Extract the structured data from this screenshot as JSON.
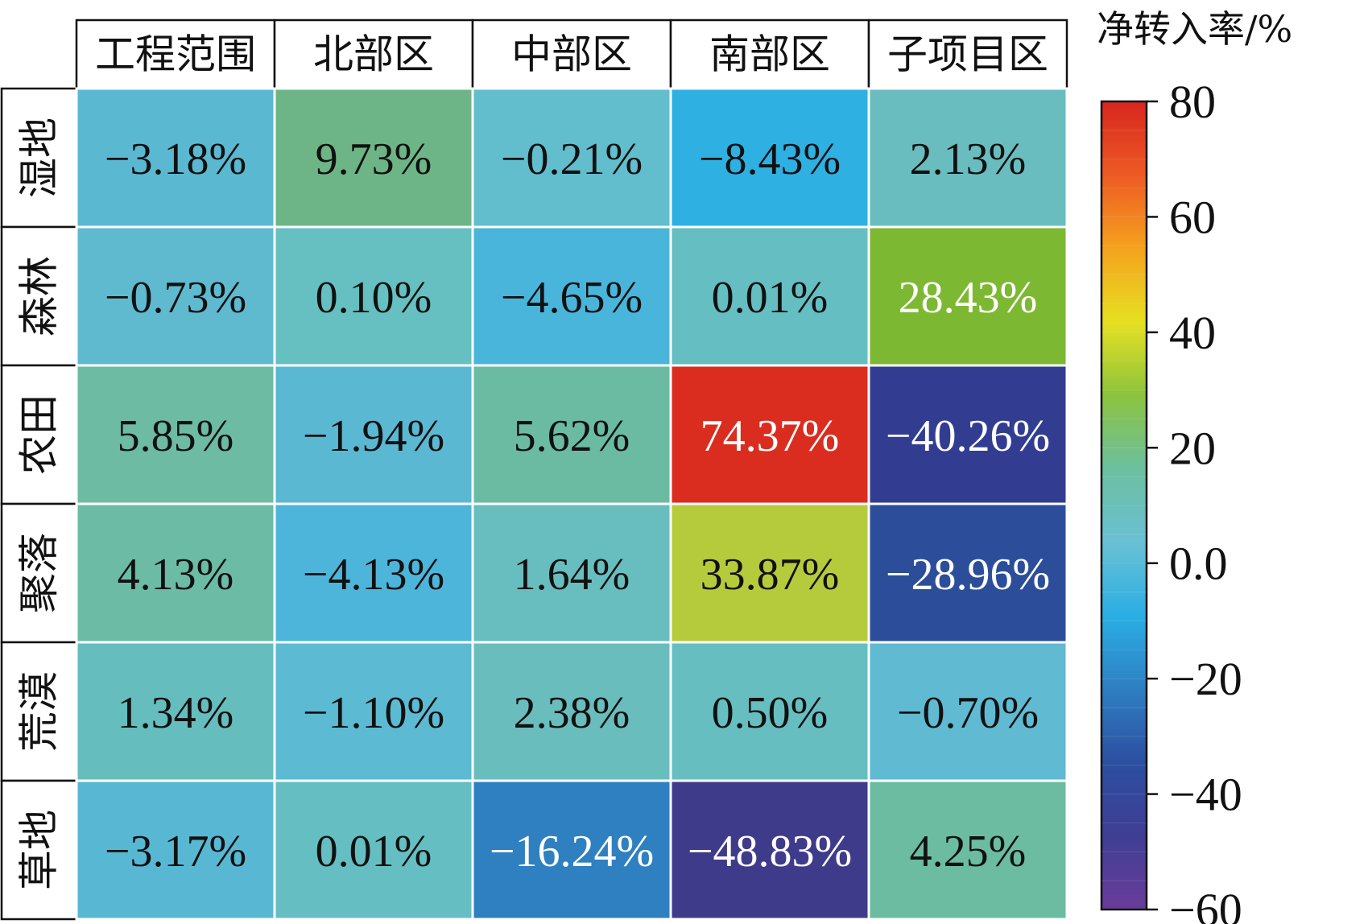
{
  "chart_data": {
    "type": "heatmap",
    "columns": [
      "工程范围",
      "北部区",
      "中部区",
      "南部区",
      "子项目区"
    ],
    "rows": [
      "湿地",
      "森林",
      "农田",
      "聚落",
      "荒漠",
      "草地"
    ],
    "values": [
      [
        -3.18,
        9.73,
        -0.21,
        -8.43,
        2.13
      ],
      [
        -0.73,
        0.1,
        -4.65,
        0.01,
        28.43
      ],
      [
        5.85,
        -1.94,
        5.62,
        74.37,
        -40.26
      ],
      [
        4.13,
        -4.13,
        1.64,
        33.87,
        -28.96
      ],
      [
        1.34,
        -1.1,
        2.38,
        0.5,
        -0.7
      ],
      [
        -3.17,
        0.01,
        -16.24,
        -48.83,
        4.25
      ]
    ],
    "labels": [
      [
        "−3.18%",
        "9.73%",
        "−0.21%",
        "−8.43%",
        "2.13%"
      ],
      [
        "−0.73%",
        "0.10%",
        "−4.65%",
        "0.01%",
        "28.43%"
      ],
      [
        "5.85%",
        "−1.94%",
        "5.62%",
        "74.37%",
        "−40.26%"
      ],
      [
        "4.13%",
        "−4.13%",
        "1.64%",
        "33.87%",
        "−28.96%"
      ],
      [
        "1.34%",
        "−1.10%",
        "2.38%",
        "0.50%",
        "−0.70%"
      ],
      [
        "−3.17%",
        "0.01%",
        "−16.24%",
        "−48.83%",
        "4.25%"
      ]
    ],
    "colorbar": {
      "title": "净转入率/%",
      "range": [
        -60,
        80
      ],
      "ticks": [
        80,
        60,
        40,
        20,
        0,
        -20,
        -40,
        -60
      ],
      "tick_labels": [
        "80",
        "60",
        "40",
        "20",
        "0.0",
        "−20",
        "−40",
        "−60"
      ],
      "colors": [
        "#6a3d9a",
        "#3f3e94",
        "#2c4fa0",
        "#2e7fc2",
        "#2aaee4",
        "#69c1d4",
        "#6cbfa0",
        "#8cc43e",
        "#e6e021",
        "#f5a21e",
        "#ed5a24",
        "#d7261e"
      ]
    },
    "value_colors": {
      "-3.18": "#5ab8d0",
      "9.73": "#6db586",
      "-0.21": "#62bdcc",
      "-8.43": "#2eb0e2",
      "2.13": "#69bdbf",
      "-0.73": "#5fbad0",
      "0.10": "#66bfc0",
      "-4.65": "#4ab5da",
      "0.01": "#65bec2",
      "28.43": "#7db833",
      "5.85": "#6cbba2",
      "-1.94": "#5bb8d2",
      "5.62": "#6bbba3",
      "74.37": "#da2d20",
      "-40.26": "#323d92",
      "4.13": "#6bbba5",
      "-4.13": "#4db5da",
      "1.64": "#68bdbe",
      "33.87": "#b6cb3c",
      "-28.96": "#2c4e9a",
      "1.34": "#66bdbe",
      "-1.10": "#5cbad3",
      "2.38": "#69bdbc",
      "0.50": "#66bec1",
      "-0.70": "#5fbad2",
      "-3.17": "#58b8d3",
      "-16.24": "#2f80c0",
      "-48.83": "#3f3b8b",
      "4.25": "#6bbca1"
    },
    "light_text_values": [
      28.43,
      74.37,
      -40.26,
      -28.96,
      -16.24,
      -48.83
    ]
  }
}
